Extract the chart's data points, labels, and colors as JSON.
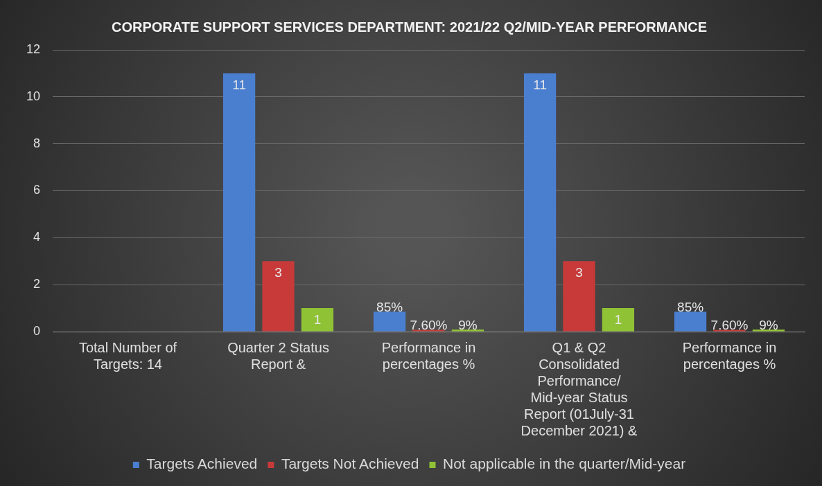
{
  "chart_data": {
    "type": "bar",
    "title": "CORPORATE SUPPORT SERVICES DEPARTMENT: 2021/22 Q2/MID-YEAR PERFORMANCE",
    "categories": [
      "Total Number of Targets: 14",
      "Quarter 2 Status Report &",
      "Performance in percentages %",
      "Q1 & Q2 Consolidated Performance/ Mid-year Status Report (01July-31 December 2021) &",
      "Performance in percentages %"
    ],
    "series": [
      {
        "name": "Targets Achieved",
        "color": "#4a7fd0",
        "values": [
          null,
          11,
          0.85,
          11,
          0.85
        ],
        "value_labels": [
          null,
          "11",
          "85%",
          "11",
          "85%"
        ]
      },
      {
        "name": "Targets Not Achieved",
        "color": "#c83a3a",
        "values": [
          null,
          3,
          0.076,
          3,
          0.076
        ],
        "value_labels": [
          null,
          "3",
          "7.60%",
          "3",
          "7.60%"
        ]
      },
      {
        "name": "Not applicable in the quarter/Mid-year",
        "color": "#8fc234",
        "values": [
          null,
          1,
          0.09,
          1,
          0.09
        ],
        "value_labels": [
          null,
          "1",
          "9%",
          "1",
          "9%"
        ]
      }
    ],
    "ylim": [
      0,
      12
    ],
    "yticks": [
      0,
      2,
      4,
      6,
      8,
      10,
      12
    ],
    "grid": "y",
    "legend": "bottom"
  }
}
